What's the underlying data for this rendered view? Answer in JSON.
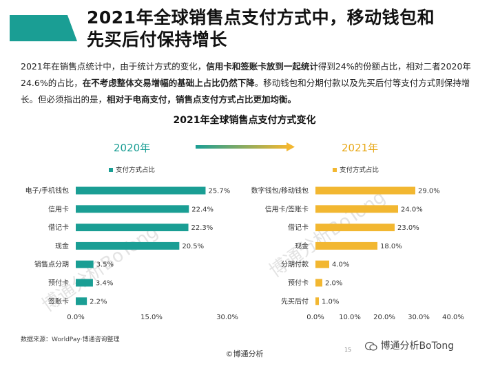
{
  "header": {
    "title_line1": "2021年全球销售点支付方式中，移动钱包和",
    "title_line2": "先买后付保持增长"
  },
  "intro": {
    "segments": [
      {
        "text": "2021年在销售点统计中，由于统计方式的变化，",
        "bold": false
      },
      {
        "text": "信用卡和签账卡放到一起统计",
        "bold": true
      },
      {
        "text": "得到24%的份额占比，相对二者2020年24.6%的占比，",
        "bold": false
      },
      {
        "text": "在不考虑整体交易增幅的基础上占比仍然下降",
        "bold": true
      },
      {
        "text": "。移动钱包和分期付款以及先买后付等支付方式则保持增长。但必须指出的是，",
        "bold": false
      },
      {
        "text": "相对于电商支付，销售点支付方式占比更加均衡。",
        "bold": true
      }
    ]
  },
  "chart_title": "2021年全球销售点支付方式变化",
  "year_2020": "2020年",
  "year_2021": "2021年",
  "source": "数据来源：WorldPay·博通咨询整理",
  "page_number": "15",
  "copyright": "©博通分析",
  "brand": "博通分析BoTong",
  "watermark": "博通分析BoTong",
  "colors": {
    "accent_teal": "#1a9e94",
    "accent_gold": "#f2b731",
    "title_bar": "#1a9e94"
  },
  "chart_data": [
    {
      "type": "bar",
      "orientation": "horizontal",
      "legend": "支付方式占比",
      "categories": [
        "电子/手机钱包",
        "信用卡",
        "借记卡",
        "现金",
        "销售点分期",
        "预付卡",
        "签账卡"
      ],
      "values": [
        25.7,
        22.4,
        22.3,
        20.5,
        3.5,
        3.4,
        2.2
      ],
      "value_labels": [
        "25.7%",
        "22.4%",
        "22.3%",
        "20.5%",
        "3.5%",
        "3.4%",
        "2.2%"
      ],
      "xlim": [
        0,
        30
      ],
      "ticks": [
        "0.0%",
        "15.0%",
        "30.0%"
      ],
      "color": "#1a9e94"
    },
    {
      "type": "bar",
      "orientation": "horizontal",
      "legend": "支付方式占比",
      "categories": [
        "数字钱包/移动钱包",
        "信用卡/签账卡",
        "借记卡",
        "现金",
        "分期付款",
        "预付卡",
        "先买后付"
      ],
      "values": [
        29.0,
        24.0,
        23.0,
        18.0,
        4.0,
        2.0,
        1.0
      ],
      "value_labels": [
        "29.0%",
        "24.0%",
        "23.0%",
        "18.0%",
        "4.0%",
        "2.0%",
        "1.0%"
      ],
      "xlim": [
        0,
        40
      ],
      "ticks": [
        "0.0%",
        "10.0%",
        "20.0%",
        "30.0%",
        "40.0%"
      ],
      "color": "#f2b731"
    }
  ]
}
